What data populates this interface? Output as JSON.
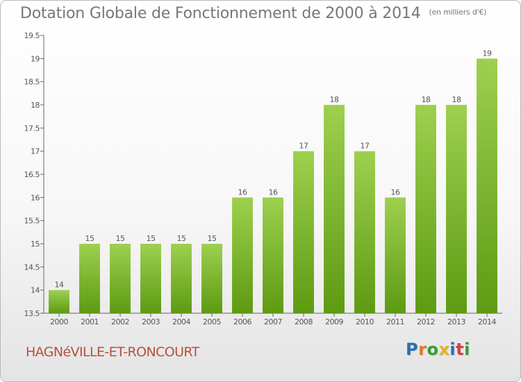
{
  "chart_title": "Dotation Globale de Fonctionnement de 2000 à 2014",
  "chart_subtitle": "(en milliers d'€)",
  "commune_name": "HAGNéVILLE-ET-RONCOURT",
  "logo": {
    "text": "Proxiti",
    "letter_colors": [
      "#2a6fb0",
      "#e07a1f",
      "#3a9b3a",
      "#e0b51f",
      "#2a6fb0",
      "#d94040",
      "#3a9b3a"
    ]
  },
  "colors": {
    "bar_top": "#9dd04f",
    "bar_bottom": "#5e9a12",
    "axis": "#666666",
    "label": "#555555"
  },
  "chart_data": {
    "type": "bar",
    "title": "Dotation Globale de Fonctionnement de 2000 à 2014",
    "subtitle": "(en milliers d'€)",
    "categories": [
      "2000",
      "2001",
      "2002",
      "2003",
      "2004",
      "2005",
      "2006",
      "2007",
      "2008",
      "2009",
      "2010",
      "2011",
      "2012",
      "2013",
      "2014"
    ],
    "values": [
      14,
      15,
      15,
      15,
      15,
      15,
      16,
      16,
      17,
      18,
      17,
      16,
      18,
      18,
      19
    ],
    "data_labels": [
      "14",
      "15",
      "15",
      "15",
      "15",
      "15",
      "16",
      "16",
      "17",
      "18",
      "17",
      "16",
      "18",
      "18",
      "19"
    ],
    "ylim": [
      13.5,
      19.5
    ],
    "y_ticks": [
      "13.5",
      "14",
      "14.5",
      "15",
      "15.5",
      "16",
      "16.5",
      "17",
      "17.5",
      "18",
      "18.5",
      "19",
      "19.5"
    ],
    "xlabel": "",
    "ylabel": "",
    "grid": false,
    "legend": "none"
  }
}
